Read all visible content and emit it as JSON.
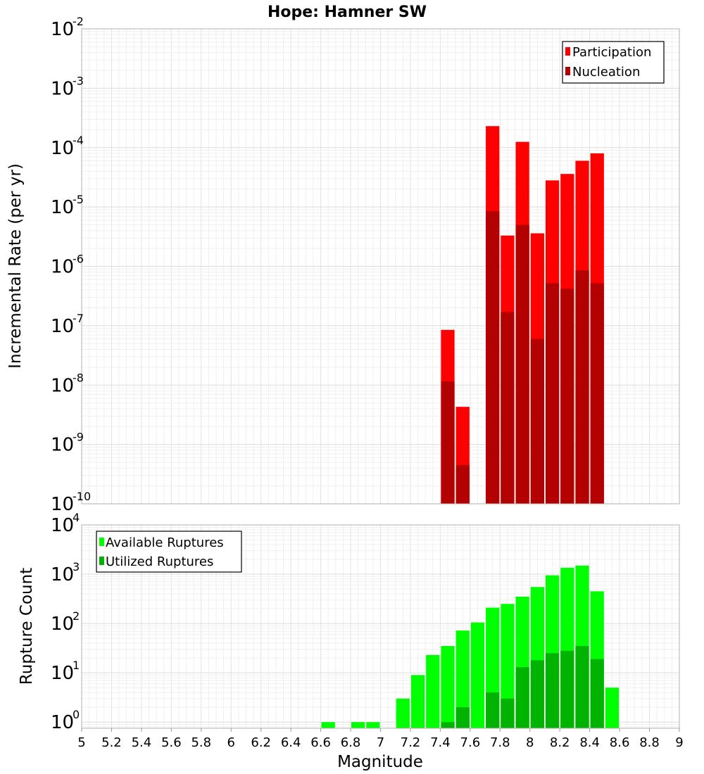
{
  "chart_data": [
    {
      "type": "bar",
      "title": "Hope: Hamner SW",
      "xlabel": "",
      "ylabel": "Incremental Rate (per yr)",
      "yscale": "log",
      "xlim": [
        5,
        9
      ],
      "ylim": [
        1e-10,
        0.01
      ],
      "bin_width": 0.1,
      "grid": true,
      "legend_position": "top-right",
      "y_ticks": [
        {
          "base": "10",
          "exp": "-10"
        },
        {
          "base": "10",
          "exp": "-9"
        },
        {
          "base": "10",
          "exp": "-8"
        },
        {
          "base": "10",
          "exp": "-7"
        },
        {
          "base": "10",
          "exp": "-6"
        },
        {
          "base": "10",
          "exp": "-5"
        },
        {
          "base": "10",
          "exp": "-4"
        },
        {
          "base": "10",
          "exp": "-3"
        },
        {
          "base": "10",
          "exp": "-2"
        }
      ],
      "series": [
        {
          "name": "Participation",
          "color": "#ff0000",
          "x": [
            7.45,
            7.55,
            7.75,
            7.85,
            7.95,
            8.05,
            8.15,
            8.25,
            8.35,
            8.45
          ],
          "values": [
            8.5e-08,
            4.3e-09,
            0.00023,
            3.3e-06,
            0.000125,
            3.6e-06,
            2.8e-05,
            3.6e-05,
            6e-05,
            8e-05
          ]
        },
        {
          "name": "Nucleation",
          "color": "#b30000",
          "x": [
            7.45,
            7.55,
            7.75,
            7.85,
            7.95,
            8.05,
            8.15,
            8.25,
            8.35,
            8.45
          ],
          "values": [
            1.15e-08,
            4.5e-10,
            8.5e-06,
            1.7e-07,
            5e-06,
            6e-08,
            5.2e-07,
            4.2e-07,
            8.5e-07,
            5.2e-07
          ]
        }
      ]
    },
    {
      "type": "bar",
      "title": "",
      "xlabel": "Magnitude",
      "ylabel": "Rupture Count",
      "yscale": "log",
      "xlim": [
        5,
        9
      ],
      "ylim": [
        0.75,
        10000.0
      ],
      "bin_width": 0.1,
      "grid": true,
      "legend_position": "top-left",
      "x_ticks": [
        "5",
        "5.2",
        "5.4",
        "5.6",
        "5.8",
        "6",
        "6.2",
        "6.4",
        "6.6",
        "6.8",
        "7",
        "7.2",
        "7.4",
        "7.6",
        "7.8",
        "8",
        "8.2",
        "8.4",
        "8.6",
        "8.8",
        "9"
      ],
      "y_ticks": [
        {
          "base": "10",
          "exp": "0"
        },
        {
          "base": "10",
          "exp": "1"
        },
        {
          "base": "10",
          "exp": "2"
        },
        {
          "base": "10",
          "exp": "3"
        },
        {
          "base": "10",
          "exp": "4"
        }
      ],
      "series": [
        {
          "name": "Available Ruptures",
          "color": "#00ff00",
          "x": [
            6.65,
            6.85,
            6.95,
            7.15,
            7.25,
            7.35,
            7.45,
            7.55,
            7.65,
            7.75,
            7.85,
            7.95,
            8.05,
            8.15,
            8.25,
            8.35,
            8.45,
            8.55
          ],
          "values": [
            1,
            1,
            1,
            3,
            9,
            23,
            35,
            72,
            105,
            210,
            250,
            350,
            550,
            950,
            1350,
            1500,
            450,
            5
          ]
        },
        {
          "name": "Utilized Ruptures",
          "color": "#00b300",
          "x": [
            7.45,
            7.55,
            7.75,
            7.85,
            7.95,
            8.05,
            8.15,
            8.25,
            8.35,
            8.45
          ],
          "values": [
            1,
            2,
            4,
            3,
            13,
            18,
            25,
            28,
            35,
            19
          ]
        }
      ]
    }
  ]
}
